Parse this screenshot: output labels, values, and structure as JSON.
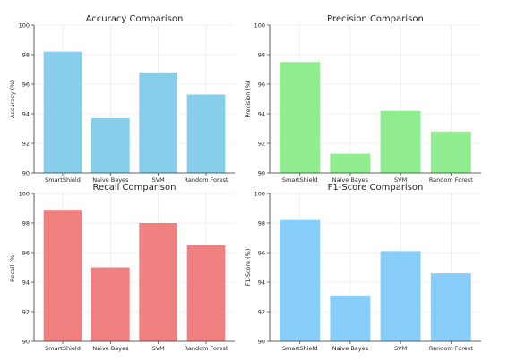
{
  "chart_data": [
    {
      "type": "bar",
      "title": "Accuracy Comparison",
      "xlabel": "",
      "ylabel": "Accuracy (%)",
      "categories": [
        "SmartShield",
        "Naive Bayes",
        "SVM",
        "Random Forest"
      ],
      "values": [
        98.2,
        93.7,
        96.8,
        95.3
      ],
      "ylim": [
        90,
        100
      ],
      "yticks": [
        90,
        92,
        94,
        96,
        98,
        100
      ],
      "color": "#87CEEB",
      "grid": true
    },
    {
      "type": "bar",
      "title": "Precision Comparison",
      "xlabel": "",
      "ylabel": "Precision (%)",
      "categories": [
        "SmartShield",
        "Naive Bayes",
        "SVM",
        "Random Forest"
      ],
      "values": [
        97.5,
        91.3,
        94.2,
        92.8
      ],
      "ylim": [
        90,
        100
      ],
      "yticks": [
        90,
        92,
        94,
        96,
        98,
        100
      ],
      "color": "#90EE90",
      "grid": true
    },
    {
      "type": "bar",
      "title": "Recall Comparison",
      "xlabel": "",
      "ylabel": "Recall (%)",
      "categories": [
        "SmartShield",
        "Naive Bayes",
        "SVM",
        "Random Forest"
      ],
      "values": [
        98.9,
        95.0,
        98.0,
        96.5
      ],
      "ylim": [
        90,
        100
      ],
      "yticks": [
        90,
        92,
        94,
        96,
        98,
        100
      ],
      "color": "#F08080",
      "grid": true
    },
    {
      "type": "bar",
      "title": "F1-Score Comparison",
      "xlabel": "",
      "ylabel": "F1-Score (%)",
      "categories": [
        "SmartShield",
        "Naive Bayes",
        "SVM",
        "Random Forest"
      ],
      "values": [
        98.2,
        93.1,
        96.1,
        94.6
      ],
      "ylim": [
        90,
        100
      ],
      "yticks": [
        90,
        92,
        94,
        96,
        98,
        100
      ],
      "color": "#87CEFA",
      "grid": true
    }
  ]
}
